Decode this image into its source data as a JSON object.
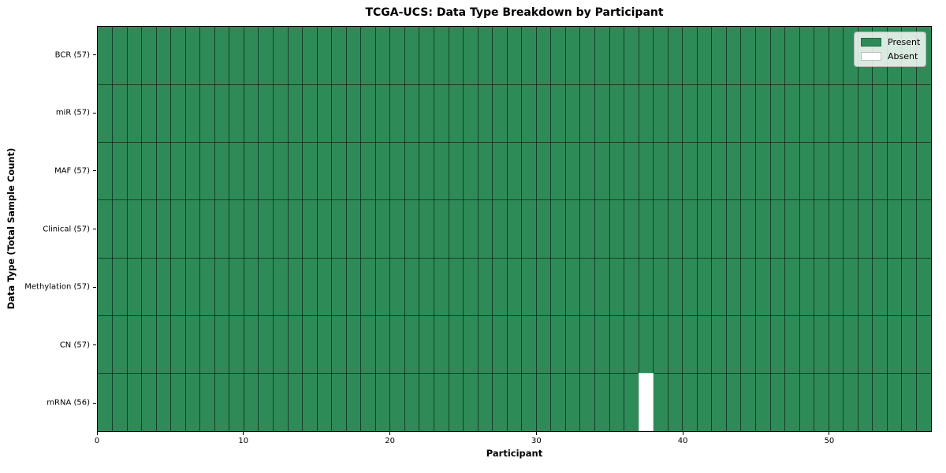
{
  "chart_data": {
    "type": "heatmap",
    "title": "TCGA-UCS: Data Type Breakdown by Participant",
    "xlabel": "Participant",
    "ylabel": "Data Type (Total Sample Count)",
    "x_ticks": [
      0,
      10,
      20,
      30,
      40,
      50
    ],
    "x_range": [
      0,
      57
    ],
    "n_participants": 57,
    "grid": "cell borders on",
    "legend_position": "upper right",
    "rows": [
      {
        "label": "BCR (57)",
        "total": 57,
        "absent_participants": []
      },
      {
        "label": "miR (57)",
        "total": 57,
        "absent_participants": []
      },
      {
        "label": "MAF (57)",
        "total": 57,
        "absent_participants": []
      },
      {
        "label": "Clinical (57)",
        "total": 57,
        "absent_participants": []
      },
      {
        "label": "Methylation (57)",
        "total": 57,
        "absent_participants": []
      },
      {
        "label": "CN (57)",
        "total": 57,
        "absent_participants": []
      },
      {
        "label": "mRNA (56)",
        "total": 56,
        "absent_participants": [
          37
        ]
      }
    ],
    "legend": [
      {
        "label": "Present",
        "color": "#2e8b57"
      },
      {
        "label": "Absent",
        "color": "#ffffff"
      }
    ],
    "colors": {
      "present": "#2e8b57",
      "absent": "#ffffff",
      "grid_line": "rgba(0,0,0,0.55)",
      "spine": "#000000"
    }
  }
}
